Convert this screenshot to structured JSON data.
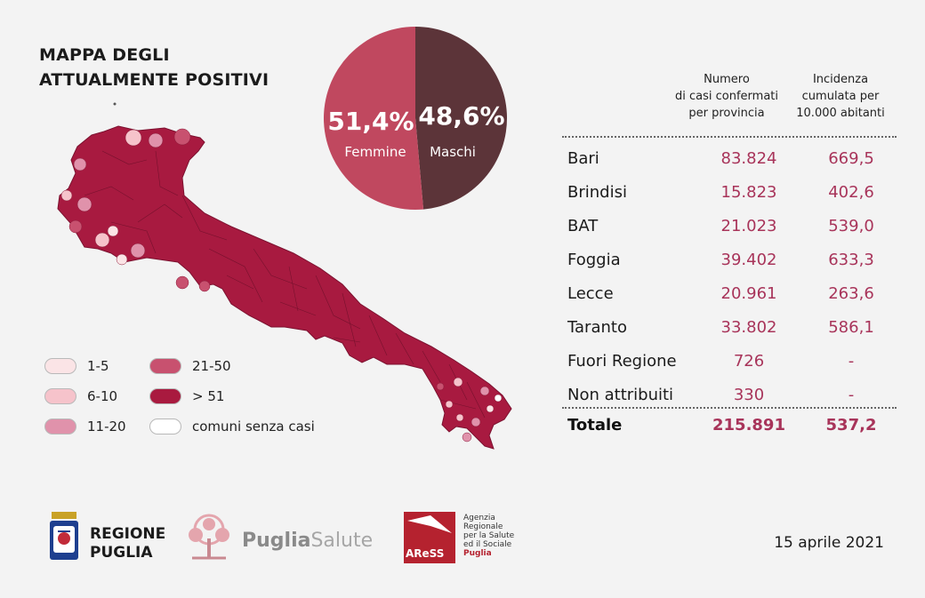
{
  "title_line1": "MAPPA DEGLI",
  "title_line2": "ATTUALMENTE POSITIVI",
  "chart_data": [
    {
      "type": "pie",
      "slices": [
        {
          "label": "Femmine",
          "value": 51.4,
          "display": "51,4%",
          "color": "#c0485f"
        },
        {
          "label": "Maschi",
          "value": 48.6,
          "display": "48,6%",
          "color": "#5c3439"
        }
      ]
    },
    {
      "type": "table",
      "columns": [
        "",
        "Numero\ndi casi confermati\nper provincia",
        "Incidenza\ncumulata per\n10.000 abitanti"
      ],
      "rows": [
        {
          "name": "Bari",
          "cases": "83.824",
          "incidence": "669,5"
        },
        {
          "name": "Brindisi",
          "cases": "15.823",
          "incidence": "402,6"
        },
        {
          "name": "BAT",
          "cases": "21.023",
          "incidence": "539,0"
        },
        {
          "name": "Foggia",
          "cases": "39.402",
          "incidence": "633,3"
        },
        {
          "name": "Lecce",
          "cases": "20.961",
          "incidence": "263,6"
        },
        {
          "name": "Taranto",
          "cases": "33.802",
          "incidence": "586,1"
        },
        {
          "name": "Fuori Regione",
          "cases": "726",
          "incidence": "-"
        },
        {
          "name": "Non attribuiti",
          "cases": "330",
          "incidence": "-"
        }
      ],
      "total": {
        "name": "Totale",
        "cases": "215.891",
        "incidence": "537,2"
      }
    }
  ],
  "legend": [
    {
      "label": "1-5",
      "color": "#fbe4e6"
    },
    {
      "label": "6-10",
      "color": "#f6c3cb"
    },
    {
      "label": "11-20",
      "color": "#e092ab"
    },
    {
      "label": "21-50",
      "color": "#c8516f"
    },
    {
      "label": "> 51",
      "color": "#a91a3f"
    },
    {
      "label": "comuni senza casi",
      "color": "#ffffff"
    }
  ],
  "map_color": "#a81a40",
  "logos": {
    "regione_line1": "REGIONE",
    "regione_line2": "PUGLIA",
    "puglia": "Puglia",
    "salute": "Salute",
    "aress": "AReSS",
    "aress_text": [
      "Agenzia",
      "Regionale",
      "per la Salute",
      "ed il Sociale"
    ],
    "aress_puglia": "Puglia"
  },
  "date": "15 aprile 2021"
}
